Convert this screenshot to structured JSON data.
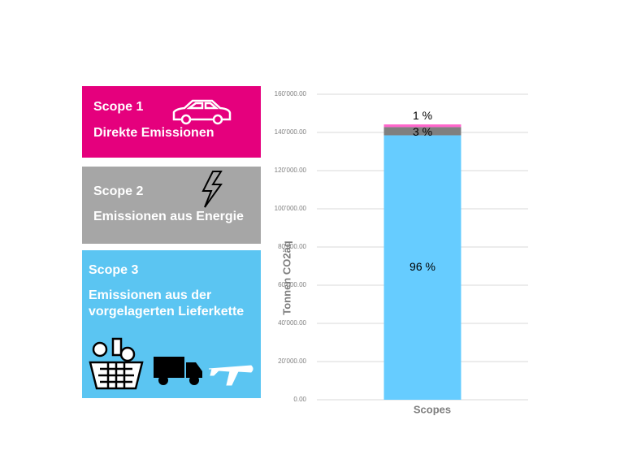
{
  "panels": [
    {
      "title": "Scope 1",
      "subtitle": "Direkte Emissionen"
    },
    {
      "title": "Scope 2",
      "subtitle": "Emissionen aus Energie"
    },
    {
      "title": "Scope 3",
      "subtitle": "Emissionen aus der vorgelagerten Lieferkette"
    }
  ],
  "chart_data": {
    "type": "stacked_bar",
    "categories": [
      null
    ],
    "x_label": "Scopes",
    "y_label": "Tonnen CO2äq",
    "series": [
      {
        "color": "#66ccff",
        "values": [
          138500
        ],
        "label": "96 %"
      },
      {
        "color": "#7f7f7f",
        "values": [
          4300
        ],
        "label": "3 %"
      },
      {
        "color": "#ff66cc",
        "values": [
          1400
        ],
        "label": "1 %"
      }
    ],
    "ylim": [
      0,
      160000
    ],
    "yticks": [
      {
        "value": 0,
        "label": "0.00"
      },
      {
        "value": 20000,
        "label": "20'000.00"
      },
      {
        "value": 40000,
        "label": "40'000.00"
      },
      {
        "value": 60000,
        "label": "60'000.00"
      },
      {
        "value": 80000,
        "label": "80'000.00"
      },
      {
        "value": 100000,
        "label": "100'000.00"
      },
      {
        "value": 120000,
        "label": "120'000.00"
      },
      {
        "value": 140000,
        "label": "140'000.00"
      },
      {
        "value": 160000,
        "label": "160'000.00"
      }
    ],
    "grid": true
  }
}
